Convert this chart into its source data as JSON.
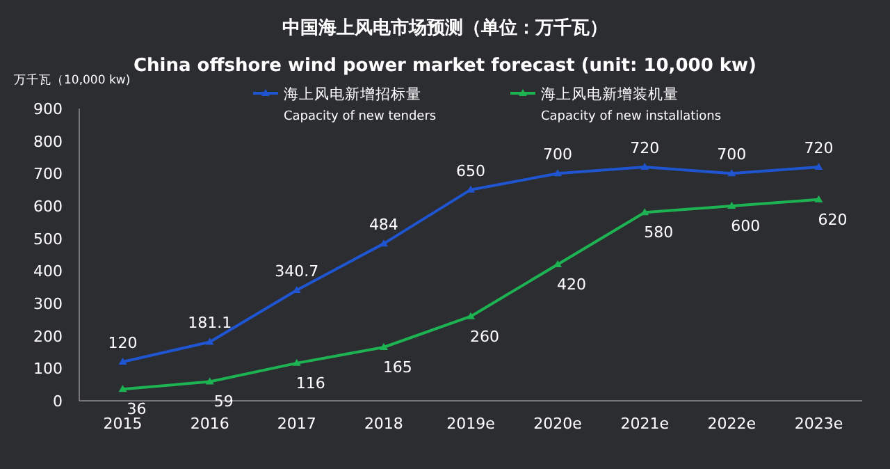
{
  "chart_data": {
    "type": "line",
    "title": "中国海上风电市场预测（单位：万千瓦）",
    "subtitle": "China offshore wind power market forecast (unit: 10,000 kw)",
    "ylabel": "万千瓦（10,000 kw)",
    "categories": [
      "2015",
      "2016",
      "2017",
      "2018",
      "2019e",
      "2020e",
      "2021e",
      "2022e",
      "2023e"
    ],
    "series": [
      {
        "name": "海上风电新增招标量\nCapacity of new tenders",
        "color": "#1f55d0",
        "values": [
          120,
          181.1,
          340.7,
          484,
          650,
          700,
          720,
          700,
          720
        ]
      },
      {
        "name": "海上风电新增装机量\nCapacity of new installations",
        "color": "#1db352",
        "values": [
          36,
          59,
          116,
          165,
          260,
          420,
          580,
          600,
          620
        ]
      }
    ],
    "ylim": [
      0,
      900
    ],
    "yticks": [
      0,
      100,
      200,
      300,
      400,
      500,
      600,
      700,
      800,
      900
    ],
    "data_labels": true,
    "legend": "top",
    "grid": false,
    "marker": "triangle",
    "line_style": "solid"
  }
}
